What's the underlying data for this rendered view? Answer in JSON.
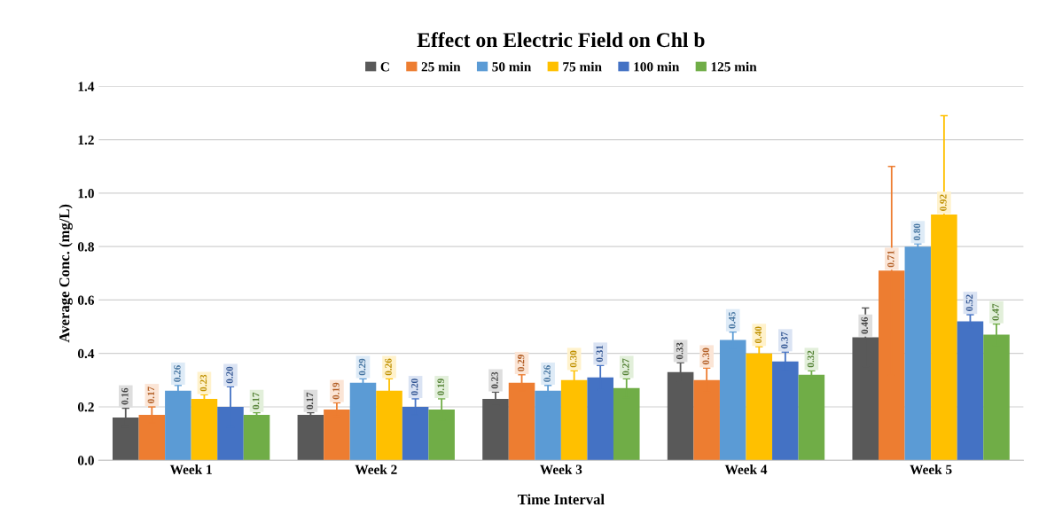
{
  "chart_data": {
    "type": "bar",
    "title": "Effect on Electric Field on Chl b",
    "xlabel": "Time Interval",
    "ylabel": "Average Conc. (mg/L)",
    "categories": [
      "Week 1",
      "Week 2",
      "Week 3",
      "Week 4",
      "Week 5"
    ],
    "series": [
      {
        "name": "C",
        "color": "#595959",
        "values": [
          0.16,
          0.17,
          0.23,
          0.33,
          0.46
        ],
        "value_labels": [
          "0.16",
          "0.17",
          "0.23",
          "0.33",
          "0.46"
        ],
        "errors": [
          0.035,
          0.008,
          0.025,
          0.035,
          0.11
        ]
      },
      {
        "name": "25 min",
        "color": "#ed7d31",
        "values": [
          0.17,
          0.19,
          0.29,
          0.3,
          0.71
        ],
        "value_labels": [
          "0.17",
          "0.19",
          "0.29",
          "0.30",
          "0.71"
        ],
        "errors": [
          0.03,
          0.025,
          0.03,
          0.045,
          0.39
        ]
      },
      {
        "name": "50 min",
        "color": "#5b9bd5",
        "values": [
          0.26,
          0.29,
          0.26,
          0.45,
          0.8
        ],
        "value_labels": [
          "0.26",
          "0.29",
          "0.26",
          "0.45",
          "0.80"
        ],
        "errors": [
          0.02,
          0.015,
          0.02,
          0.03,
          0.01
        ]
      },
      {
        "name": "75 min",
        "color": "#ffc000",
        "values": [
          0.23,
          0.26,
          0.3,
          0.4,
          0.92
        ],
        "value_labels": [
          "0.23",
          "0.26",
          "0.30",
          "0.40",
          "0.92"
        ],
        "errors": [
          0.015,
          0.045,
          0.035,
          0.025,
          0.37
        ]
      },
      {
        "name": "100 min",
        "color": "#4472c4",
        "values": [
          0.2,
          0.2,
          0.31,
          0.37,
          0.52
        ],
        "value_labels": [
          "0.20",
          "0.20",
          "0.31",
          "0.37",
          "0.52"
        ],
        "errors": [
          0.075,
          0.03,
          0.045,
          0.035,
          0.025
        ]
      },
      {
        "name": "125 min",
        "color": "#70ad47",
        "values": [
          0.17,
          0.19,
          0.27,
          0.32,
          0.47
        ],
        "value_labels": [
          "0.17",
          "0.19",
          "0.27",
          "0.32",
          "0.47"
        ],
        "errors": [
          0.008,
          0.04,
          0.035,
          0.015,
          0.04
        ]
      }
    ],
    "ylim": [
      0,
      1.4
    ],
    "yticks": [
      {
        "value": 0,
        "label": "0.0"
      },
      {
        "value": 0.2,
        "label": "0.2"
      },
      {
        "value": 0.4,
        "label": "0.4"
      },
      {
        "value": 0.6,
        "label": "0.6"
      },
      {
        "value": 0.8,
        "label": "0.8"
      },
      {
        "value": 1.0,
        "label": "1.0"
      },
      {
        "value": 1.2,
        "label": "1.2"
      },
      {
        "value": 1.4,
        "label": "1.4"
      }
    ],
    "grid": "y",
    "legend": "top"
  }
}
